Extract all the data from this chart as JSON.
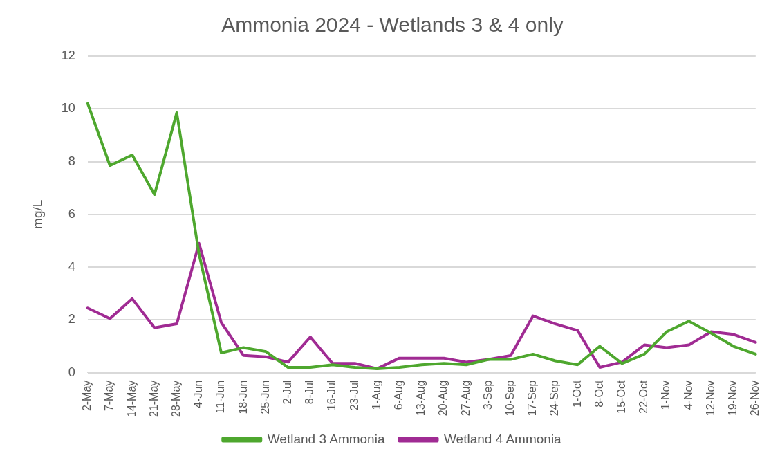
{
  "chart_data": {
    "type": "line",
    "title": "Ammonia 2024 - Wetlands 3 & 4 only",
    "ylabel": "mg/L",
    "categories": [
      "2-May",
      "7-May",
      "14-May",
      "21-May",
      "28-May",
      "4-Jun",
      "11-Jun",
      "18-Jun",
      "25-Jun",
      "2-Jul",
      "8-Jul",
      "16-Jul",
      "23-Jul",
      "1-Aug",
      "6-Aug",
      "13-Aug",
      "20-Aug",
      "27-Aug",
      "3-Sep",
      "10-Sep",
      "17-Sep",
      "24-Sep",
      "1-Oct",
      "8-Oct",
      "15-Oct",
      "22-Oct",
      "1-Nov",
      "4-Nov",
      "12-Nov",
      "19-Nov",
      "26-Nov"
    ],
    "series": [
      {
        "name": "Wetland 3 Ammonia",
        "color": "#4ea72e",
        "values": [
          10.2,
          7.85,
          8.25,
          6.75,
          9.85,
          4.5,
          0.75,
          0.95,
          0.8,
          0.2,
          0.2,
          0.3,
          0.2,
          0.15,
          0.2,
          0.3,
          0.35,
          0.3,
          0.5,
          0.5,
          0.7,
          0.45,
          0.3,
          1.0,
          0.35,
          0.7,
          1.55,
          1.95,
          1.5,
          1.0,
          0.7
        ]
      },
      {
        "name": "Wetland 4 Ammonia",
        "color": "#a02b93",
        "values": [
          2.45,
          2.05,
          2.8,
          1.7,
          1.85,
          4.9,
          1.9,
          0.65,
          0.6,
          0.4,
          1.35,
          0.35,
          0.35,
          0.15,
          0.55,
          0.55,
          0.55,
          0.4,
          0.5,
          0.65,
          2.15,
          1.85,
          1.6,
          0.2,
          0.4,
          1.05,
          0.95,
          1.05,
          1.55,
          1.45,
          1.15
        ]
      }
    ],
    "ylim": [
      0,
      12
    ],
    "yticks": [
      0,
      2,
      4,
      6,
      8,
      10,
      12
    ],
    "grid": "y",
    "legend": "bottom",
    "marker": "none",
    "line_style": "solid"
  }
}
